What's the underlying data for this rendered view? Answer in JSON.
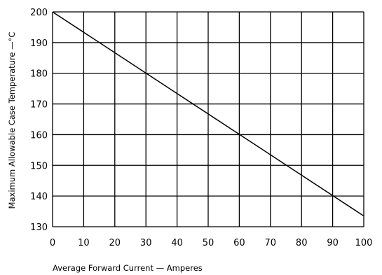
{
  "chart_data": {
    "type": "line",
    "xlabel": "Average Forward Current — Amperes",
    "ylabel": "Maximum Allowable Case Temperature —°C",
    "xlim": [
      0,
      100
    ],
    "ylim": [
      130,
      200
    ],
    "x_ticks": [
      0,
      10,
      20,
      30,
      40,
      50,
      60,
      70,
      80,
      90,
      100
    ],
    "y_ticks": [
      130,
      140,
      150,
      160,
      170,
      180,
      190,
      200
    ],
    "grid": true,
    "series": [
      {
        "x": [
          0,
          100
        ],
        "y": [
          200,
          133.5
        ],
        "color": "#000000"
      }
    ]
  }
}
